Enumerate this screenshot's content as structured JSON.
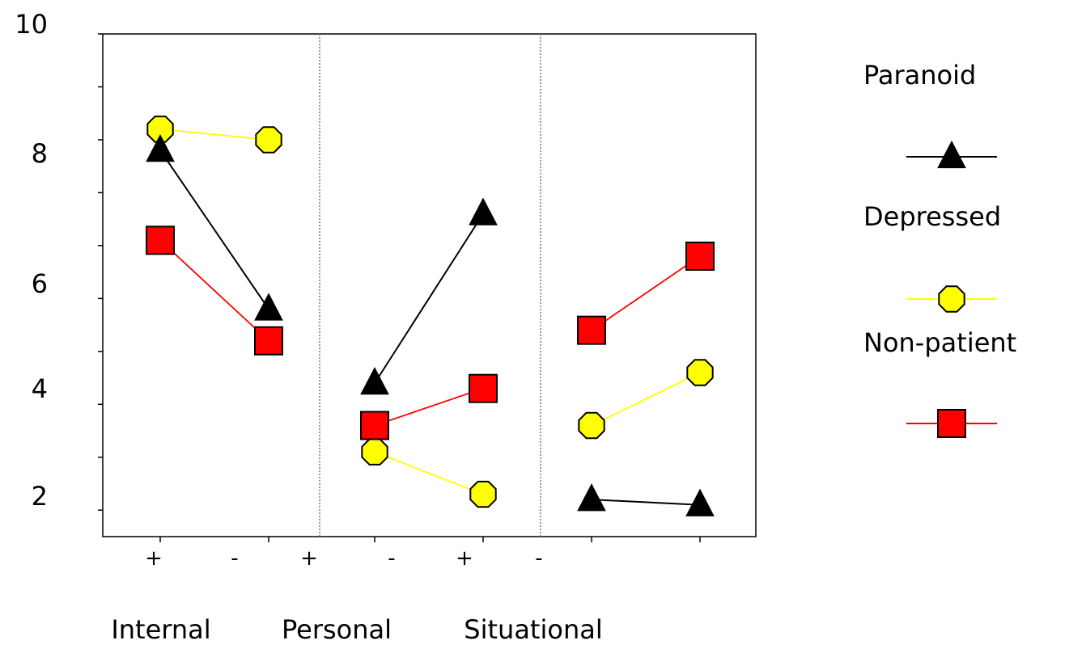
{
  "chart_data": {
    "type": "line",
    "title": "",
    "xlabel": "",
    "ylabel": "",
    "ylim": [
      1.5,
      11
    ],
    "y_tick_labels": [
      "2",
      "4",
      "6",
      "8",
      "10"
    ],
    "x_sign_labels": [
      "+",
      "-",
      "+",
      "-",
      "+",
      "-"
    ],
    "group_labels": [
      "Internal",
      "Personal",
      "Situational"
    ],
    "panels": 3,
    "grid": false,
    "legend_position": "right",
    "series": [
      {
        "name": "Paranoid",
        "color": "#000000",
        "marker": "triangle",
        "segments": [
          [
            8.8,
            5.8
          ],
          [
            4.4,
            7.6
          ],
          [
            2.2,
            2.1
          ]
        ]
      },
      {
        "name": "Depressed",
        "color": "#ffff00",
        "marker": "octagon",
        "segments": [
          [
            9.2,
            9.0
          ],
          [
            3.1,
            2.3
          ],
          [
            3.6,
            4.6
          ]
        ]
      },
      {
        "name": "Non-patient",
        "color": "#ff0000",
        "marker": "square",
        "segments": [
          [
            7.1,
            5.2
          ],
          [
            3.6,
            4.3
          ],
          [
            5.4,
            6.8
          ]
        ]
      }
    ]
  }
}
